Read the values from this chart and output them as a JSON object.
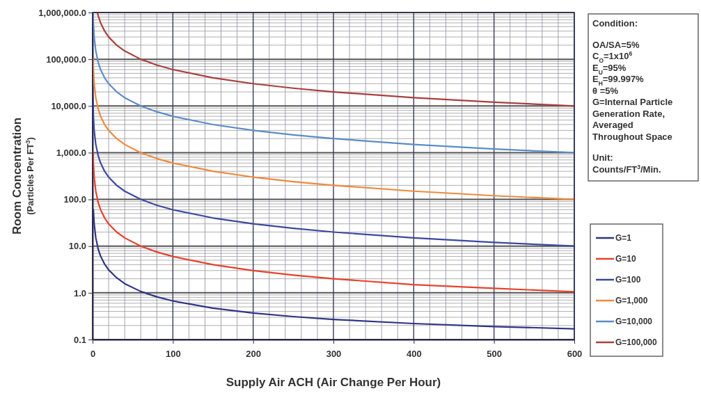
{
  "chart_data": {
    "type": "line",
    "xlabel": "Supply Air ACH (Air Change Per Hour)",
    "ylabel": "Room Concentration\n(Particles Per FT$^{3}$)",
    "log": "y",
    "grid": true,
    "legend": "right",
    "marker": "none",
    "line_style": "solid",
    "xlim": [
      0,
      600
    ],
    "xticks": [
      0,
      100,
      200,
      300,
      400,
      500,
      600
    ],
    "ylim": [
      0.1,
      1000000
    ],
    "yticks": [
      {
        "value": 0.1,
        "label": "0.1"
      },
      {
        "value": 1,
        "label": "1.0"
      },
      {
        "value": 10,
        "label": "10.0"
      },
      {
        "value": 100,
        "label": "100.0"
      },
      {
        "value": 1000,
        "label": "1,000.0"
      },
      {
        "value": 10000,
        "label": "10,000.0"
      },
      {
        "value": 100000,
        "label": "100,000.0"
      },
      {
        "value": 1000000,
        "label": "1,000,000.0"
      }
    ],
    "annotations": [
      "Condition:",
      "OA/SA=5%\nC$_{O}$=1x10$^{6}$\nE$_{U}$=95%\nE$_{H}$=99.997%\nθ =5%\nG=Internal Particle\nGeneration Rate,\nAveraged\nThroughout Space",
      "Unit:\nCounts/FT$^{3}$/Min."
    ],
    "series": [
      {
        "name": "G=1",
        "color": "#2e3585",
        "x": [
          1,
          2,
          4,
          7,
          10,
          15,
          20,
          30,
          40,
          60,
          80,
          100,
          150,
          200,
          250,
          300,
          400,
          500,
          600
        ],
        "values": [
          60,
          30,
          15,
          8.6,
          6.1,
          4.1,
          3.1,
          2.1,
          1.57,
          1.07,
          0.82,
          0.67,
          0.47,
          0.37,
          0.31,
          0.27,
          0.22,
          0.19,
          0.17
        ]
      },
      {
        "name": "G=10",
        "color": "#e8412c",
        "x": [
          0.6,
          1,
          2,
          4,
          7,
          10,
          15,
          20,
          30,
          40,
          60,
          80,
          100,
          150,
          200,
          250,
          300,
          400,
          500,
          600
        ],
        "values": [
          1000,
          600,
          300,
          150,
          86,
          60,
          40,
          30,
          20,
          15,
          10,
          7.5,
          6,
          4,
          3,
          2.4,
          2,
          1.5,
          1.25,
          1.05
        ]
      },
      {
        "name": "G=100",
        "color": "#3c48a0",
        "x": [
          0.15,
          1,
          2,
          4,
          7,
          10,
          15,
          20,
          30,
          40,
          60,
          80,
          100,
          150,
          200,
          250,
          300,
          400,
          500,
          600
        ],
        "values": [
          40000,
          6000,
          3000,
          1500,
          860,
          600,
          400,
          300,
          200,
          150,
          100,
          75,
          60,
          40,
          30,
          24,
          20,
          15,
          12,
          10
        ]
      },
      {
        "name": "G=1,000",
        "color": "#f08a3c",
        "x": [
          0.6,
          1,
          2,
          4,
          7,
          10,
          15,
          20,
          30,
          40,
          60,
          80,
          100,
          150,
          200,
          250,
          300,
          400,
          500,
          600
        ],
        "values": [
          100000,
          60000,
          30000,
          15000,
          8600,
          6000,
          4000,
          3000,
          2000,
          1500,
          1000,
          750,
          600,
          400,
          300,
          240,
          200,
          150,
          120,
          100
        ]
      },
      {
        "name": "G=10,000",
        "color": "#5b8cc8",
        "x": [
          0.6,
          1,
          2,
          4,
          7,
          10,
          15,
          20,
          30,
          40,
          60,
          80,
          100,
          150,
          200,
          250,
          300,
          400,
          500,
          600
        ],
        "values": [
          1000000,
          600000,
          300000,
          150000,
          86000,
          60000,
          40000,
          30000,
          20000,
          15000,
          10000,
          7500,
          6000,
          4000,
          3000,
          2400,
          2000,
          1500,
          1200,
          1000
        ]
      },
      {
        "name": "G=100,000",
        "color": "#a8403e",
        "x": [
          6,
          7,
          10,
          15,
          20,
          30,
          40,
          60,
          80,
          100,
          150,
          200,
          250,
          300,
          400,
          500,
          600
        ],
        "values": [
          1000000,
          857000,
          600000,
          400000,
          300000,
          200000,
          150000,
          100000,
          75000,
          60000,
          40000,
          30000,
          24000,
          20000,
          15000,
          12000,
          10000
        ]
      }
    ]
  }
}
